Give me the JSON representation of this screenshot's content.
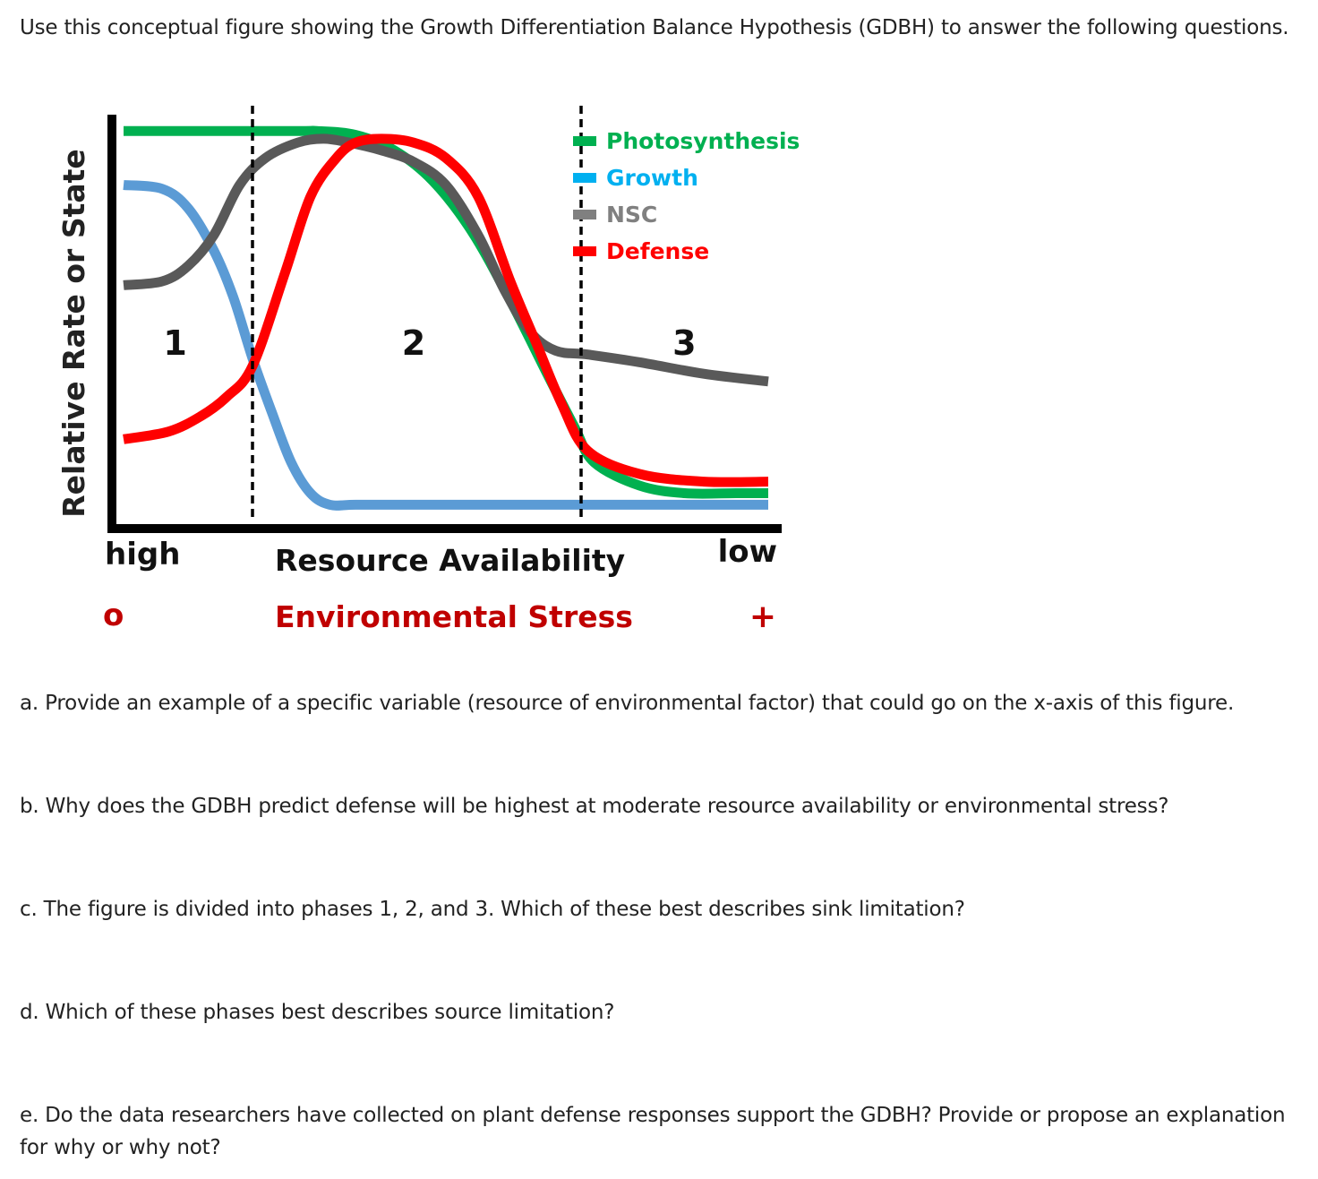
{
  "intro": "Use this conceptual figure showing the Growth Differentiation Balance Hypothesis (GDBH) to answer the following questions.",
  "chart_data": {
    "type": "line",
    "conceptual": true,
    "ylabel": "Relative Rate or State",
    "xlabel": "Resource Availability",
    "xlabel2": "Environmental Stress",
    "x_tick_left": "high",
    "x_tick_right": "low",
    "x2_tick_left": "o",
    "x2_tick_right": "+",
    "xlim": [
      0,
      1
    ],
    "ylim": [
      0,
      1
    ],
    "phase_boundaries": [
      0.2,
      0.71
    ],
    "phases": [
      {
        "label": "1",
        "x": 0.08
      },
      {
        "label": "2",
        "x": 0.45
      },
      {
        "label": "3",
        "x": 0.87
      }
    ],
    "legend_position": "top-right",
    "series": [
      {
        "name": "Photosynthesis",
        "color": "#00B050",
        "x": [
          0.0,
          0.26,
          0.3,
          0.36,
          0.42,
          0.48,
          0.54,
          0.6,
          0.66,
          0.7,
          0.73,
          0.8,
          0.87,
          0.95,
          1.0
        ],
        "y": [
          0.99,
          0.99,
          0.99,
          0.98,
          0.94,
          0.86,
          0.73,
          0.55,
          0.35,
          0.22,
          0.13,
          0.07,
          0.05,
          0.05,
          0.05
        ]
      },
      {
        "name": "Growth",
        "color": "#5B9BD5",
        "x": [
          0.0,
          0.06,
          0.1,
          0.14,
          0.17,
          0.2,
          0.23,
          0.26,
          0.29,
          0.32,
          0.36,
          0.45,
          0.6,
          0.8,
          1.0
        ],
        "y": [
          0.85,
          0.84,
          0.79,
          0.68,
          0.56,
          0.4,
          0.26,
          0.13,
          0.05,
          0.02,
          0.02,
          0.02,
          0.02,
          0.02,
          0.02
        ]
      },
      {
        "name": "NSC",
        "color": "#595959",
        "x": [
          0.0,
          0.06,
          0.1,
          0.14,
          0.18,
          0.22,
          0.27,
          0.31,
          0.35,
          0.4,
          0.45,
          0.5,
          0.55,
          0.59,
          0.63,
          0.67,
          0.72,
          0.8,
          0.9,
          1.0
        ],
        "y": [
          0.59,
          0.6,
          0.64,
          0.72,
          0.85,
          0.92,
          0.96,
          0.97,
          0.96,
          0.94,
          0.91,
          0.85,
          0.72,
          0.58,
          0.47,
          0.42,
          0.41,
          0.39,
          0.36,
          0.34
        ]
      },
      {
        "name": "Defense",
        "color": "#FF0000",
        "x": [
          0.0,
          0.07,
          0.12,
          0.16,
          0.2,
          0.25,
          0.29,
          0.33,
          0.36,
          0.4,
          0.45,
          0.5,
          0.55,
          0.6,
          0.64,
          0.68,
          0.72,
          0.8,
          0.9,
          1.0
        ],
        "y": [
          0.19,
          0.21,
          0.25,
          0.3,
          0.38,
          0.62,
          0.82,
          0.92,
          0.96,
          0.97,
          0.96,
          0.92,
          0.82,
          0.6,
          0.44,
          0.28,
          0.16,
          0.1,
          0.08,
          0.08
        ]
      }
    ]
  },
  "questions": {
    "a": "a. Provide an example of a specific variable (resource of environmental factor) that could go on the x-axis of this figure.",
    "b": "b. Why does the GDBH predict defense will be highest at moderate resource availability or environmental stress?",
    "c": "c. The figure is divided into phases 1, 2, and 3. Which of these best describes sink limitation?",
    "d": "d. Which of these phases best describes source limitation?",
    "e": "e. Do the data researchers have collected on plant defense responses support the GDBH? Provide or propose an explanation for why or why not?"
  }
}
